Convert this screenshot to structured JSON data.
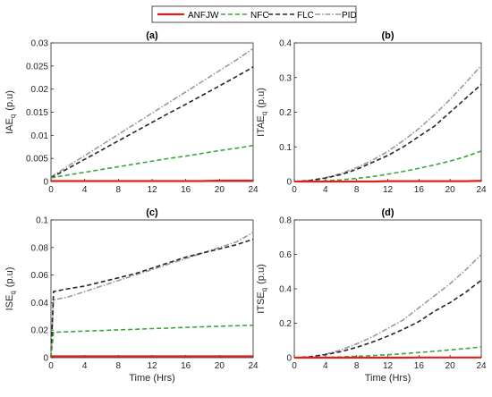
{
  "colors": {
    "ANFJW": "#e0201b",
    "NFC": "#3aa63a",
    "FLC": "#262626",
    "PID": "#9a9a9a"
  },
  "legend": {
    "placement": "top-center",
    "entries": [
      "ANFJW",
      "NFC",
      "FLC",
      "PID"
    ]
  },
  "chart_data": [
    {
      "type": "line",
      "panel_label": "(a)",
      "ylabel_main": "IAE",
      "ylabel_sub": "q",
      "ylabel_unit": "(p.u)",
      "xlabel": "",
      "xlim": [
        0,
        24
      ],
      "ylim": [
        0,
        0.03
      ],
      "xticks": [
        0,
        4,
        8,
        12,
        16,
        20,
        24
      ],
      "yticks": [
        0,
        0.005,
        0.01,
        0.015,
        0.02,
        0.025,
        0.03
      ],
      "ytick_labels": [
        "0",
        "0.005",
        "0.01",
        "0.015",
        "0.02",
        "0.025",
        "0.03"
      ],
      "grid": false,
      "x": [
        0,
        2,
        4,
        6,
        8,
        10,
        12,
        14,
        16,
        18,
        20,
        22,
        24
      ],
      "series": [
        {
          "name": "ANFJW",
          "style": "solid",
          "values": [
            0.0001,
            0.0001,
            0.0001,
            0.0001,
            0.0001,
            0.0001,
            0.0001,
            0.0001,
            0.0001,
            0.0001,
            0.0002,
            0.0002,
            0.0002
          ]
        },
        {
          "name": "NFC",
          "style": "dashed",
          "values": [
            0.0008,
            0.0014,
            0.002,
            0.0026,
            0.0032,
            0.0038,
            0.0044,
            0.005,
            0.0055,
            0.0061,
            0.0067,
            0.0072,
            0.0078
          ]
        },
        {
          "name": "FLC",
          "style": "dashed",
          "values": [
            0.0008,
            0.0028,
            0.0048,
            0.0068,
            0.0088,
            0.0108,
            0.0128,
            0.0148,
            0.0167,
            0.0187,
            0.0207,
            0.0227,
            0.0248
          ]
        },
        {
          "name": "PID",
          "style": "dashdot",
          "values": [
            0.001,
            0.0033,
            0.0056,
            0.0079,
            0.0102,
            0.0125,
            0.0148,
            0.0171,
            0.0194,
            0.0217,
            0.024,
            0.0263,
            0.0288
          ]
        }
      ]
    },
    {
      "type": "line",
      "panel_label": "(b)",
      "ylabel_main": "ITAE",
      "ylabel_sub": "q",
      "ylabel_unit": "(p.u)",
      "xlabel": "",
      "xlim": [
        0,
        24
      ],
      "ylim": [
        0,
        0.4
      ],
      "xticks": [
        0,
        4,
        8,
        12,
        16,
        20,
        24
      ],
      "yticks": [
        0,
        0.1,
        0.2,
        0.3,
        0.4
      ],
      "ytick_labels": [
        "0",
        "0.1",
        "0.2",
        "0.3",
        "0.4"
      ],
      "grid": false,
      "x": [
        0,
        2,
        4,
        6,
        8,
        10,
        12,
        14,
        16,
        18,
        20,
        22,
        24
      ],
      "series": [
        {
          "name": "ANFJW",
          "style": "solid",
          "values": [
            0,
            0,
            0,
            0,
            0,
            0,
            0.001,
            0.001,
            0.001,
            0.001,
            0.001,
            0.001,
            0.002
          ]
        },
        {
          "name": "NFC",
          "style": "dashed",
          "values": [
            0,
            0.001,
            0.002,
            0.005,
            0.009,
            0.014,
            0.021,
            0.029,
            0.038,
            0.048,
            0.059,
            0.072,
            0.088
          ]
        },
        {
          "name": "FLC",
          "style": "dashed",
          "values": [
            0,
            0.003,
            0.01,
            0.02,
            0.035,
            0.055,
            0.075,
            0.1,
            0.13,
            0.16,
            0.2,
            0.24,
            0.28
          ]
        },
        {
          "name": "PID",
          "style": "dashdot",
          "values": [
            0,
            0.003,
            0.011,
            0.023,
            0.04,
            0.061,
            0.087,
            0.118,
            0.153,
            0.193,
            0.237,
            0.285,
            0.335
          ]
        }
      ]
    },
    {
      "type": "line",
      "panel_label": "(c)",
      "ylabel_main": "ISE",
      "ylabel_sub": "q",
      "ylabel_unit": "(p.u)",
      "xlabel": "Time (Hrs)",
      "xlim": [
        0,
        24
      ],
      "ylim": [
        0,
        0.1
      ],
      "xticks": [
        0,
        4,
        8,
        12,
        16,
        20,
        24
      ],
      "yticks": [
        0,
        0.02,
        0.04,
        0.06,
        0.08,
        0.1
      ],
      "ytick_labels": [
        "0",
        "0.02",
        "0.04",
        "0.06",
        "0.08",
        "0.1"
      ],
      "grid": false,
      "x": [
        0,
        0.3,
        2,
        4,
        6,
        8,
        10,
        12,
        14,
        16,
        18,
        20,
        22,
        24
      ],
      "series": [
        {
          "name": "ANFJW",
          "style": "solid",
          "values": [
            0.001,
            0.001,
            0.001,
            0.001,
            0.001,
            0.001,
            0.001,
            0.001,
            0.001,
            0.001,
            0.001,
            0.001,
            0.001,
            0.001
          ]
        },
        {
          "name": "NFC",
          "style": "dashed",
          "values": [
            0,
            0.0185,
            0.0188,
            0.0193,
            0.0197,
            0.0202,
            0.0206,
            0.0211,
            0.0215,
            0.022,
            0.0224,
            0.0228,
            0.0232,
            0.0236
          ]
        },
        {
          "name": "FLC",
          "style": "dashed",
          "values": [
            0,
            0.048,
            0.05,
            0.052,
            0.055,
            0.058,
            0.061,
            0.065,
            0.069,
            0.073,
            0.076,
            0.079,
            0.082,
            0.086
          ]
        },
        {
          "name": "PID",
          "style": "dashdot",
          "values": [
            0,
            0.042,
            0.044,
            0.048,
            0.052,
            0.056,
            0.06,
            0.064,
            0.068,
            0.072,
            0.076,
            0.08,
            0.084,
            0.091
          ]
        }
      ]
    },
    {
      "type": "line",
      "panel_label": "(d)",
      "ylabel_main": "ITSE",
      "ylabel_sub": "q",
      "ylabel_unit": "(p.u)",
      "xlabel": "Time (Hrs)",
      "xlim": [
        0,
        24
      ],
      "ylim": [
        0,
        0.8
      ],
      "xticks": [
        0,
        4,
        8,
        12,
        16,
        20,
        24
      ],
      "yticks": [
        0,
        0.2,
        0.4,
        0.6,
        0.8
      ],
      "ytick_labels": [
        "0",
        "0.2",
        "0.4",
        "0.6",
        "0.8"
      ],
      "grid": false,
      "x": [
        0,
        2,
        4,
        6,
        8,
        10,
        12,
        14,
        16,
        18,
        20,
        22,
        24
      ],
      "series": [
        {
          "name": "ANFJW",
          "style": "solid",
          "values": [
            0,
            0,
            0,
            0,
            0,
            0,
            0,
            0,
            0.001,
            0.001,
            0.001,
            0.001,
            0.001
          ]
        },
        {
          "name": "NFC",
          "style": "dashed",
          "values": [
            0,
            0.0005,
            0.002,
            0.004,
            0.008,
            0.012,
            0.017,
            0.023,
            0.03,
            0.037,
            0.045,
            0.053,
            0.062
          ]
        },
        {
          "name": "FLC",
          "style": "dashed",
          "values": [
            0,
            0.005,
            0.018,
            0.035,
            0.06,
            0.09,
            0.125,
            0.165,
            0.21,
            0.27,
            0.32,
            0.38,
            0.45
          ]
        },
        {
          "name": "PID",
          "style": "dashdot",
          "values": [
            0,
            0.005,
            0.02,
            0.045,
            0.08,
            0.12,
            0.17,
            0.22,
            0.29,
            0.36,
            0.43,
            0.51,
            0.6
          ]
        }
      ]
    }
  ]
}
